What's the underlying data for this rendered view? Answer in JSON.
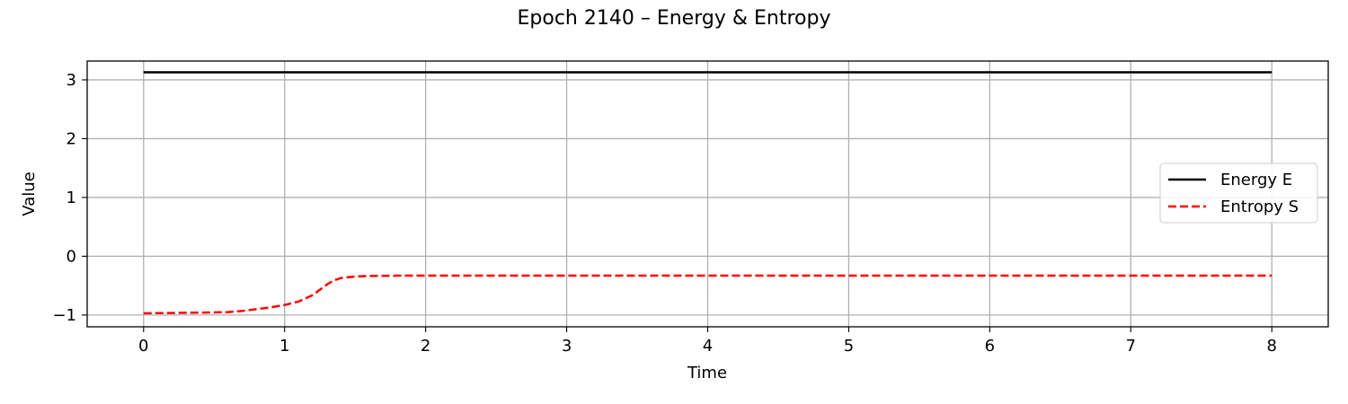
{
  "chart_data": {
    "type": "line",
    "title": "Epoch 2140 – Energy & Entropy",
    "xlabel": "Time",
    "ylabel": "Value",
    "xlim": [
      -0.4,
      8.4
    ],
    "ylim": [
      -1.2,
      3.32
    ],
    "xticks": [
      0,
      1,
      2,
      3,
      4,
      5,
      6,
      7,
      8
    ],
    "yticks": [
      -1,
      0,
      1,
      2,
      3
    ],
    "ytick_labels": [
      "−1",
      "0",
      "1",
      "2",
      "3"
    ],
    "grid": true,
    "legend": "center-right",
    "series": [
      {
        "name": "Energy E",
        "color": "#000000",
        "dash": "solid",
        "x": [
          0,
          1,
          2,
          3,
          4,
          5,
          6,
          7,
          8
        ],
        "y": [
          3.13,
          3.13,
          3.13,
          3.13,
          3.13,
          3.13,
          3.13,
          3.13,
          3.13
        ]
      },
      {
        "name": "Entropy S",
        "color": "#ff0000",
        "dash": "dashed",
        "x": [
          0,
          0.2,
          0.4,
          0.6,
          0.7,
          0.8,
          0.9,
          1.0,
          1.1,
          1.2,
          1.25,
          1.3,
          1.35,
          1.4,
          1.5,
          1.6,
          1.8,
          2.0,
          3.0,
          4.0,
          5.0,
          6.0,
          7.0,
          8.0
        ],
        "y": [
          -0.97,
          -0.965,
          -0.96,
          -0.95,
          -0.93,
          -0.9,
          -0.87,
          -0.83,
          -0.77,
          -0.66,
          -0.57,
          -0.48,
          -0.41,
          -0.37,
          -0.345,
          -0.335,
          -0.33,
          -0.33,
          -0.33,
          -0.33,
          -0.33,
          -0.33,
          -0.33,
          -0.33
        ]
      }
    ]
  }
}
